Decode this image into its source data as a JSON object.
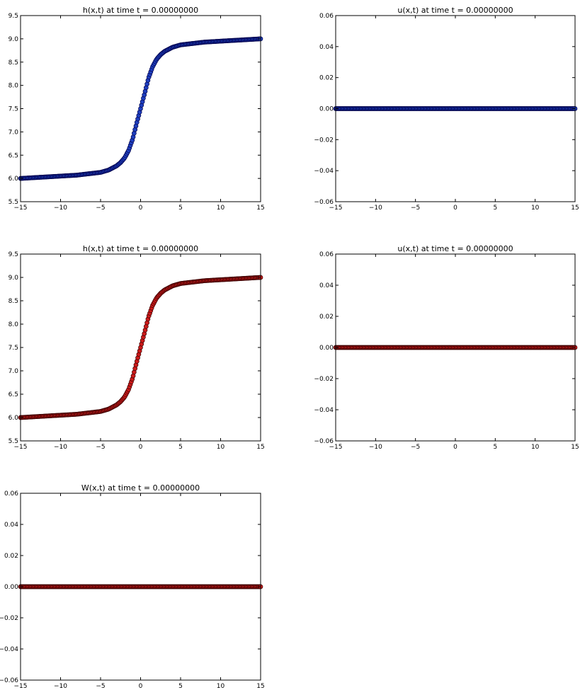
{
  "colors": {
    "blue_fill": "#1f3fbf",
    "blue_edge": "#00004a",
    "red_fill": "#cc1a1a",
    "red_edge": "#3a0000"
  },
  "chart_data": [
    {
      "type": "scatter",
      "title": "h(x,t) at time t =     0.00000000",
      "xlim": [
        -15,
        15
      ],
      "ylim": [
        5.5,
        9.5
      ],
      "xticks": [
        -15,
        -10,
        -5,
        0,
        5,
        10,
        15
      ],
      "xtick_labels": [
        "−15",
        "−10",
        "−5",
        "0",
        "5",
        "10",
        "15"
      ],
      "yticks": [
        5.5,
        6.0,
        6.5,
        7.0,
        7.5,
        8.0,
        8.5,
        9.0,
        9.5
      ],
      "ytick_labels": [
        "5.5",
        "6.0",
        "6.5",
        "7.0",
        "7.5",
        "8.0",
        "8.5",
        "9.0",
        "9.5"
      ],
      "color": "blue",
      "series": [
        {
          "x": [
            -15,
            -12,
            -10,
            -8,
            -6,
            -5,
            -4,
            -3,
            -2.5,
            -2,
            -1.5,
            -1,
            -0.5,
            0,
            0.5,
            1,
            1.5,
            2,
            2.5,
            3,
            4,
            5,
            6,
            8,
            10,
            12,
            15
          ],
          "y": [
            6.0,
            6.03,
            6.05,
            6.07,
            6.11,
            6.13,
            6.18,
            6.27,
            6.34,
            6.44,
            6.6,
            6.84,
            7.18,
            7.5,
            7.82,
            8.16,
            8.4,
            8.56,
            8.66,
            8.73,
            8.82,
            8.87,
            8.89,
            8.93,
            8.95,
            8.97,
            9.0
          ]
        }
      ]
    },
    {
      "type": "scatter",
      "title": "u(x,t) at time t =     0.00000000",
      "xlim": [
        -15,
        15
      ],
      "ylim": [
        -0.06,
        0.06
      ],
      "xticks": [
        -15,
        -10,
        -5,
        0,
        5,
        10,
        15
      ],
      "xtick_labels": [
        "−15",
        "−10",
        "−5",
        "0",
        "5",
        "10",
        "15"
      ],
      "yticks": [
        -0.06,
        -0.04,
        -0.02,
        0.0,
        0.02,
        0.04,
        0.06
      ],
      "ytick_labels": [
        "−0.06",
        "−0.04",
        "−0.02",
        "0.00",
        "0.02",
        "0.04",
        "0.06"
      ],
      "color": "blue",
      "series": [
        {
          "x": [
            -15,
            15
          ],
          "y": [
            0,
            0
          ]
        }
      ]
    },
    {
      "type": "scatter",
      "title": "h(x,t) at time t =     0.00000000",
      "xlim": [
        -15,
        15
      ],
      "ylim": [
        5.5,
        9.5
      ],
      "xticks": [
        -15,
        -10,
        -5,
        0,
        5,
        10,
        15
      ],
      "xtick_labels": [
        "−15",
        "−10",
        "−5",
        "0",
        "5",
        "10",
        "15"
      ],
      "yticks": [
        5.5,
        6.0,
        6.5,
        7.0,
        7.5,
        8.0,
        8.5,
        9.0,
        9.5
      ],
      "ytick_labels": [
        "5.5",
        "6.0",
        "6.5",
        "7.0",
        "7.5",
        "8.0",
        "8.5",
        "9.0",
        "9.5"
      ],
      "color": "red",
      "series": [
        {
          "x": [
            -15,
            -12,
            -10,
            -8,
            -6,
            -5,
            -4,
            -3,
            -2.5,
            -2,
            -1.5,
            -1,
            -0.5,
            0,
            0.5,
            1,
            1.5,
            2,
            2.5,
            3,
            4,
            5,
            6,
            8,
            10,
            12,
            15
          ],
          "y": [
            6.0,
            6.03,
            6.05,
            6.07,
            6.11,
            6.13,
            6.18,
            6.27,
            6.34,
            6.44,
            6.6,
            6.84,
            7.18,
            7.5,
            7.82,
            8.16,
            8.4,
            8.56,
            8.66,
            8.73,
            8.82,
            8.87,
            8.89,
            8.93,
            8.95,
            8.97,
            9.0
          ]
        }
      ]
    },
    {
      "type": "scatter",
      "title": "u(x,t) at time t =     0.00000000",
      "xlim": [
        -15,
        15
      ],
      "ylim": [
        -0.06,
        0.06
      ],
      "xticks": [
        -15,
        -10,
        -5,
        0,
        5,
        10,
        15
      ],
      "xtick_labels": [
        "−15",
        "−10",
        "−5",
        "0",
        "5",
        "10",
        "15"
      ],
      "yticks": [
        -0.06,
        -0.04,
        -0.02,
        0.0,
        0.02,
        0.04,
        0.06
      ],
      "ytick_labels": [
        "−0.06",
        "−0.04",
        "−0.02",
        "0.00",
        "0.02",
        "0.04",
        "0.06"
      ],
      "color": "red",
      "series": [
        {
          "x": [
            -15,
            15
          ],
          "y": [
            0,
            0
          ]
        }
      ]
    },
    {
      "type": "scatter",
      "title": "W(x,t) at time t =     0.00000000",
      "xlim": [
        -15,
        15
      ],
      "ylim": [
        -0.06,
        0.06
      ],
      "xticks": [
        -15,
        -10,
        -5,
        0,
        5,
        10,
        15
      ],
      "xtick_labels": [
        "−15",
        "−10",
        "−5",
        "0",
        "5",
        "10",
        "15"
      ],
      "yticks": [
        -0.06,
        -0.04,
        -0.02,
        0.0,
        0.02,
        0.04,
        0.06
      ],
      "ytick_labels": [
        "−0.06",
        "−0.04",
        "−0.02",
        "0.00",
        "0.02",
        "0.04",
        "0.06"
      ],
      "color": "red",
      "series": [
        {
          "x": [
            -15,
            15
          ],
          "y": [
            0,
            0
          ]
        }
      ]
    }
  ]
}
